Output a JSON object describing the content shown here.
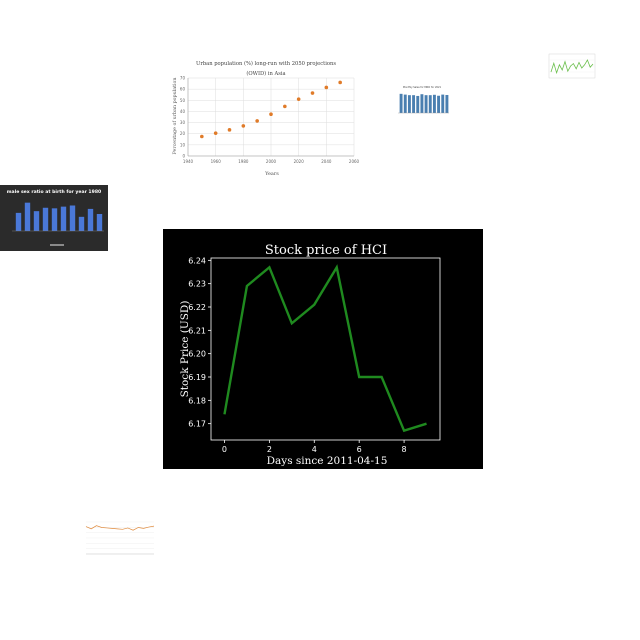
{
  "chart_data": [
    {
      "type": "scatter",
      "title": "Urban population (%) long-run with 2050 projections (OWID) in Asia",
      "xlabel": "Years",
      "ylabel": "Percentage of urban population",
      "x": [
        1950,
        1960,
        1970,
        1980,
        1990,
        2000,
        2010,
        2020,
        2030,
        2040,
        2050
      ],
      "y": [
        17.5,
        20.5,
        23.5,
        27,
        31.5,
        37.5,
        44.5,
        51,
        56.5,
        61.5,
        66
      ],
      "xlim": [
        1940,
        2060
      ],
      "ylim": [
        0,
        70
      ],
      "xticks": [
        "1940",
        "1960",
        "1980",
        "2000",
        "2020",
        "2040",
        "2060"
      ],
      "yticks": [
        "0",
        "10",
        "20",
        "30",
        "40",
        "50",
        "60",
        "70"
      ],
      "grid": true,
      "colors": {
        "points": "#e07b29"
      }
    },
    {
      "type": "bar",
      "title": "Monthly Sales for MNO for 2021",
      "values": [
        100,
        96,
        93,
        93,
        89,
        98,
        93,
        93,
        95,
        90,
        96,
        94
      ],
      "ylim": [
        0,
        120
      ],
      "colors": {
        "bars": "#4a7fb0"
      }
    },
    {
      "type": "line",
      "values": [
        40,
        62,
        38,
        58,
        45,
        66,
        42,
        55,
        61,
        48,
        64,
        50,
        58,
        70,
        52,
        60
      ],
      "ylim": [
        30,
        80
      ],
      "colors": {
        "line": "#6abf4b"
      }
    },
    {
      "type": "bar",
      "title": "male sex ratio at birth for year 1980",
      "values": [
        1.044,
        1.08,
        1.05,
        1.062,
        1.06,
        1.066,
        1.07,
        1.03,
        1.058,
        1.04
      ],
      "ylim": [
        0.98,
        1.1
      ],
      "colors": {
        "bars": "#4a78d8",
        "background": "#2b2b2b"
      }
    },
    {
      "type": "line",
      "title": "Stock price of HCI",
      "xlabel": "Days since 2011-04-15",
      "ylabel": "Stock Price (USD)",
      "x": [
        0,
        1,
        2,
        3,
        4,
        5,
        6,
        7,
        8,
        9
      ],
      "y": [
        6.174,
        6.229,
        6.237,
        6.213,
        6.221,
        6.237,
        6.19,
        6.19,
        6.167,
        6.17
      ],
      "xlim": [
        -0.6,
        9.6
      ],
      "ylim": [
        6.163,
        6.241
      ],
      "xticks": [
        0,
        2,
        4,
        6,
        8
      ],
      "yticks": [
        "6.17",
        "6.18",
        "6.19",
        "6.20",
        "6.21",
        "6.22",
        "6.23",
        "6.24"
      ],
      "grid": false,
      "colors": {
        "line": "#1f8a1f",
        "background": "#000000",
        "text": "#ffffff"
      }
    },
    {
      "type": "line",
      "values": [
        60,
        55,
        62,
        58,
        57,
        56,
        55,
        54,
        57,
        52,
        58,
        56,
        59,
        61
      ],
      "ylim": [
        0,
        70
      ],
      "colors": {
        "line": "#e08a3c"
      }
    }
  ]
}
